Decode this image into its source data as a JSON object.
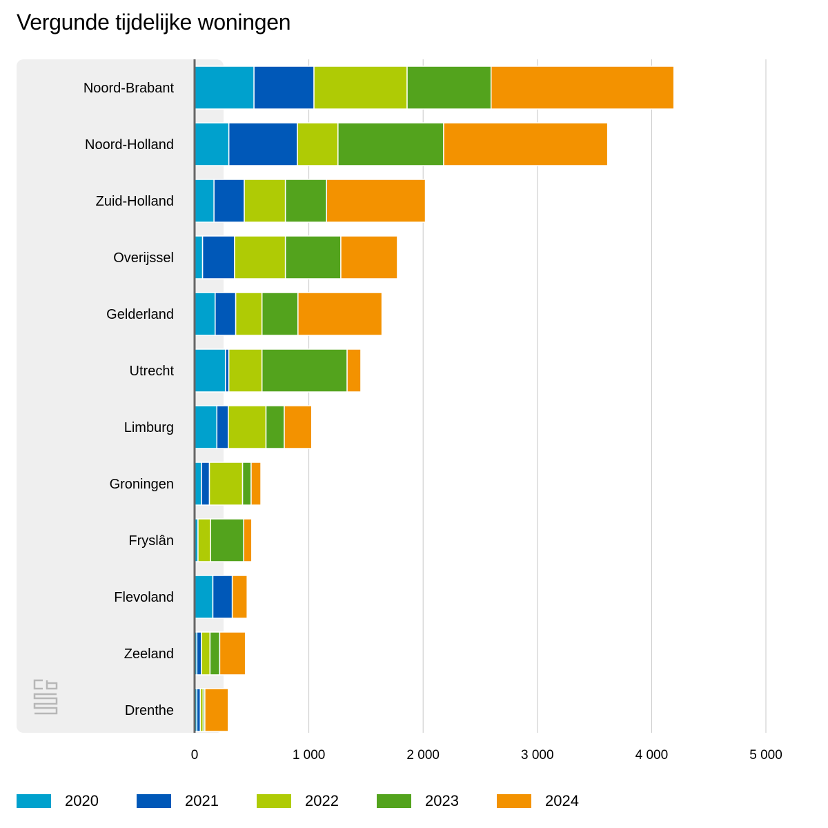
{
  "chart_data": {
    "type": "bar",
    "orientation": "horizontal",
    "stacked": true,
    "title": "Vergunde tijdelijke woningen",
    "categories": [
      "Noord-Brabant",
      "Noord-Holland",
      "Zuid-Holland",
      "Overijssel",
      "Gelderland",
      "Utrecht",
      "Limburg",
      "Groningen",
      "Fryslân",
      "Flevoland",
      "Zeeland",
      "Drenthe"
    ],
    "series": [
      {
        "name": "2020",
        "color": "#00a1cd",
        "values": [
          520,
          300,
          170,
          70,
          180,
          270,
          195,
          60,
          30,
          160,
          20,
          20
        ]
      },
      {
        "name": "2021",
        "color": "#0058b8",
        "values": [
          525,
          600,
          265,
          280,
          180,
          30,
          100,
          70,
          0,
          170,
          40,
          30
        ]
      },
      {
        "name": "2022",
        "color": "#afcb05",
        "values": [
          815,
          355,
          360,
          445,
          230,
          290,
          330,
          290,
          110,
          0,
          75,
          25
        ]
      },
      {
        "name": "2023",
        "color": "#53a31d",
        "values": [
          735,
          925,
          360,
          485,
          315,
          745,
          160,
          75,
          290,
          0,
          85,
          15
        ]
      },
      {
        "name": "2024",
        "color": "#f39200",
        "values": [
          1600,
          1435,
          865,
          495,
          735,
          120,
          240,
          85,
          70,
          130,
          225,
          205
        ]
      }
    ],
    "xlim": [
      0,
      5000
    ],
    "xticks": [
      0,
      1000,
      2000,
      3000,
      4000,
      5000
    ],
    "xtick_labels": [
      "0",
      "1 000",
      "2 000",
      "3 000",
      "4 000",
      "5 000"
    ],
    "grid": true,
    "legend_position": "bottom"
  },
  "logo": {
    "text": "cbs",
    "icon": "cbs-logo-icon"
  }
}
